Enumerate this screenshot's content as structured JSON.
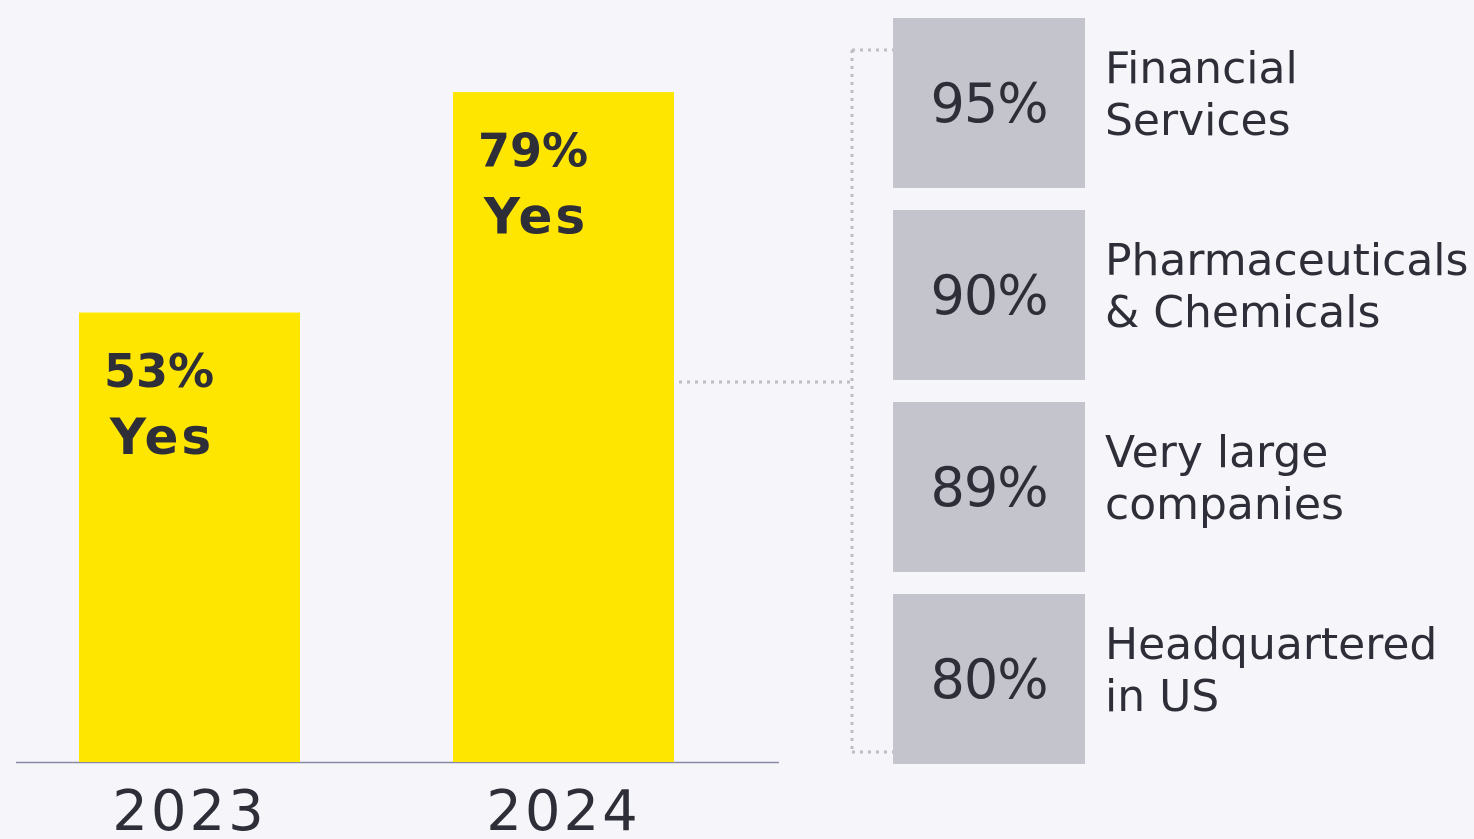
{
  "chart_data": {
    "type": "bar",
    "categories": [
      "2023",
      "2024"
    ],
    "values": [
      53,
      79
    ],
    "value_labels": [
      "53%",
      "79%"
    ],
    "annotation": "Yes",
    "color": "#ffe600",
    "breakdown": {
      "categories": [
        "Financial\nServices",
        "Pharmaceuticals\n& Chemicals",
        "Very large\ncompanies",
        "Headquartered\nin US"
      ],
      "values": [
        95,
        90,
        89,
        80
      ],
      "value_labels": [
        "95%",
        "90%",
        "89%",
        "80%"
      ],
      "color": "#c4c4cc"
    }
  }
}
